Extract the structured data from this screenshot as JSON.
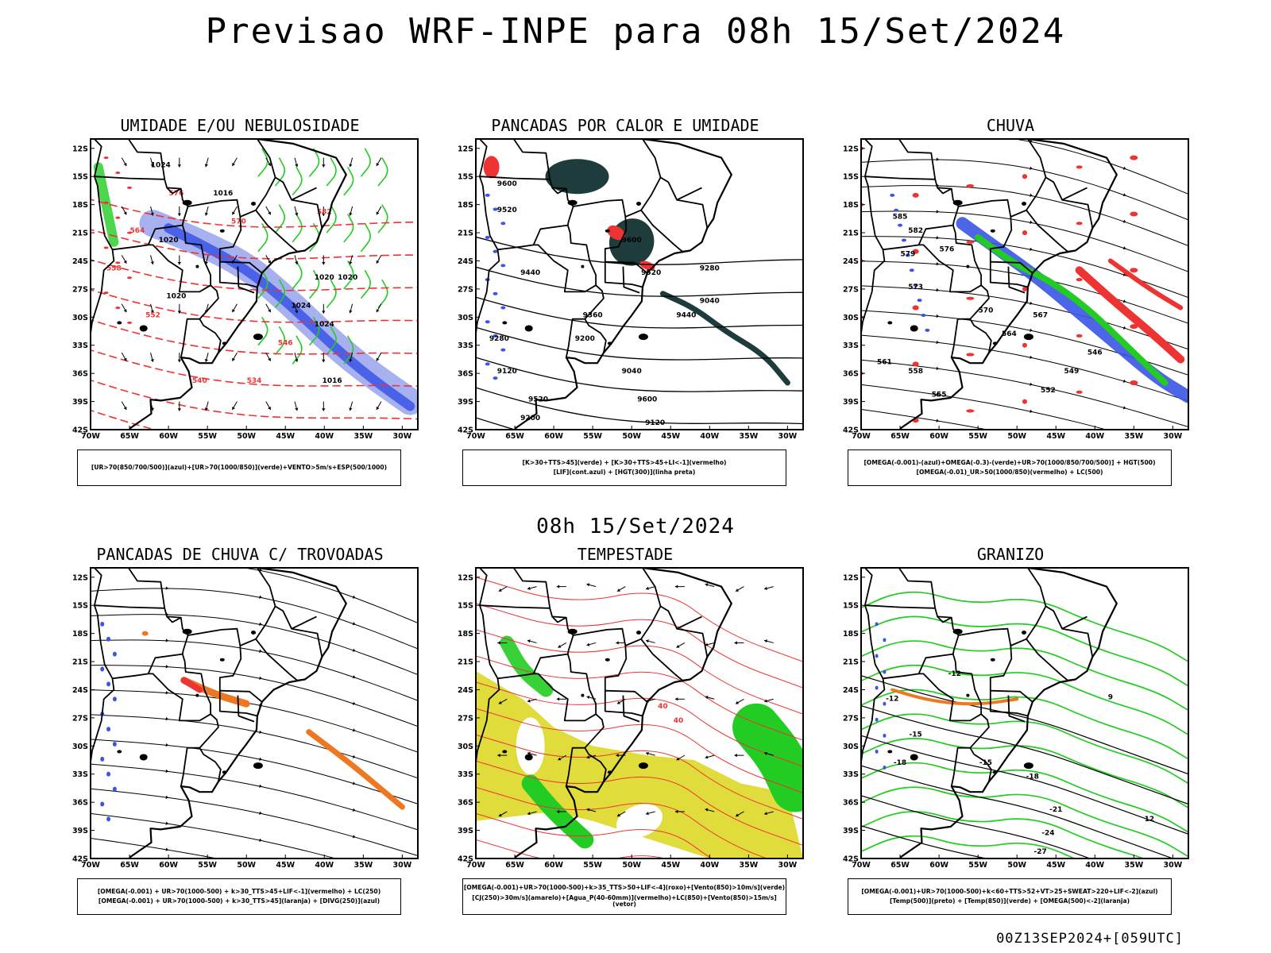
{
  "title": "Previsao WRF-INPE  para 08h 15/Set/2024",
  "mid_date": "08h 15/Set/2024",
  "run_id": "00Z13SEP2024+[059UTC]",
  "axes": {
    "lat_ticks": [
      "12S",
      "15S",
      "18S",
      "21S",
      "24S",
      "27S",
      "30S",
      "33S",
      "36S",
      "39S",
      "42S"
    ],
    "lon_ticks": [
      "70W",
      "65W",
      "60W",
      "55W",
      "50W",
      "45W",
      "40W",
      "35W",
      "30W"
    ]
  },
  "panels": [
    {
      "title": "UMIDADE E/OU NEBULOSIDADE",
      "legend": [
        "[UR>70(850/700/500)](azul)+[UR>70(1000/850)](verde)+VENTO>5m/s+ESP(500/1000)"
      ],
      "contour_labels": [
        "1020",
        "1016",
        "1024",
        "1020",
        "1024",
        "1020",
        "1020",
        "1024",
        "1016",
        "576",
        "570",
        "564",
        "558",
        "552",
        "546",
        "540",
        "534",
        "582"
      ]
    },
    {
      "title": "PANCADAS POR CALOR E UMIDADE",
      "legend": [
        "[K>30+TTS>45](verde) + [K>30+TTS>45+LI<-1](vermelho)",
        "[LIF](cont.azul) + [HGT(300)](linha preta)"
      ],
      "contour_labels": [
        "9600",
        "9520",
        "9600",
        "9520",
        "9440",
        "9360",
        "9440",
        "9280",
        "9200",
        "9120",
        "9040",
        "9520",
        "9600",
        "9200",
        "9120",
        "9040",
        "9280"
      ]
    },
    {
      "title": "CHUVA",
      "legend": [
        "[OMEGA(-0.001)-(azul)+OMEGA(-0.3)-(verde)+UR>70(1000/850/700/500)] + HGT(500)",
        "[OMEGA(-0.01)_UR>50(1000/850)(vermelho) + LC(500)"
      ],
      "contour_labels": [
        "579",
        "576",
        "573",
        "570",
        "567",
        "564",
        "561",
        "558",
        "555",
        "552",
        "549",
        "546",
        "585",
        "582"
      ]
    },
    {
      "title": "PANCADAS DE CHUVA C/ TROVOADAS",
      "legend": [
        "[OMEGA(-0.001) + UR>70(1000-500) + k>30_TTS>45+LIF<-1](vermelho) + LC(250)",
        "[OMEGA(-0.001) + UR>70(1000-500) + k>30_TTS>45](laranja) + [DIVG(250)](azul)"
      ],
      "contour_labels": []
    },
    {
      "title": "TEMPESTADE",
      "legend": [
        "[OMEGA(-0.001)+UR>70(1000-500)+k>35_TTS>50+LIF<-4](roxo)+[Vento(850)>10m/s](verde)",
        "[CJ(250)>30m/s](amarelo)+[Agua_P(40-60mm)](vermelho)+LC(850)+[Vento(850)>15m/s](vetor)"
      ],
      "contour_labels": [
        "40",
        "40"
      ]
    },
    {
      "title": "GRANIZO",
      "legend": [
        "[OMEGA(-0.001)+UR>70(1000-500)+k<60+TTS>52+VT>25+SWEAT>220+LIF<-2](azul)",
        "[Temp(500)](preto) + [Temp(850)](verde) + [OMEGA(500)<-2](laranja)"
      ],
      "contour_labels": [
        "-12",
        "-15",
        "-18",
        "-15",
        "-18",
        "-21",
        "-24",
        "-27",
        "-12",
        "9",
        "12"
      ]
    }
  ],
  "colors": {
    "blue": "#3a55e6",
    "lightblue": "#9fa8ee",
    "green": "#22cc22",
    "red": "#ee3333",
    "orange": "#ee7722",
    "yellow": "#e0dc3c",
    "darkteal": "#1e3c3c"
  }
}
